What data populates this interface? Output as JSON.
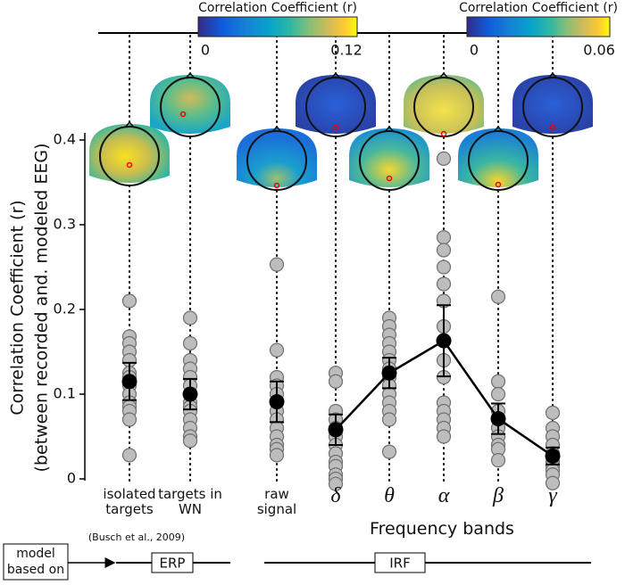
{
  "chart_data": {
    "type": "strip",
    "ylabel": "Correlation Coefficient (r)",
    "ylabel2": "(between recorded and. modeled EEG)",
    "xlabel": "Frequency bands",
    "note": "(Busch et al., 2009)",
    "ylim": [
      0,
      0.4
    ],
    "yticks": [
      0,
      0.1,
      0.2,
      0.3,
      0.4
    ],
    "groups": [
      {
        "label": "isolated targets",
        "points": [
          0.21,
          0.168,
          0.16,
          0.15,
          0.14,
          0.125,
          0.12,
          0.11,
          0.1,
          0.09,
          0.085,
          0.08,
          0.07,
          0.028
        ],
        "mean": 0.115,
        "error": 0.022
      },
      {
        "label": "targets in WN",
        "points": [
          0.19,
          0.16,
          0.14,
          0.13,
          0.12,
          0.11,
          0.1,
          0.09,
          0.085,
          0.08,
          0.07,
          0.06,
          0.05,
          0.045
        ],
        "mean": 0.1,
        "error": 0.018
      },
      {
        "label": "raw signal",
        "points": [
          0.253,
          0.152,
          0.12,
          0.11,
          0.1,
          0.09,
          0.08,
          0.07,
          0.06,
          0.05,
          0.04,
          0.035,
          0.028
        ],
        "mean": 0.091,
        "error": 0.024
      },
      {
        "label": "δ",
        "points": [
          0.125,
          0.115,
          0.08,
          0.07,
          0.06,
          0.05,
          0.04,
          0.03,
          0.02,
          0.015,
          0.005,
          0,
          -0.006
        ],
        "mean": 0.058,
        "error": 0.018
      },
      {
        "label": "θ",
        "points": [
          0.19,
          0.18,
          0.17,
          0.16,
          0.15,
          0.14,
          0.13,
          0.12,
          0.11,
          0.1,
          0.09,
          0.08,
          0.07,
          0.032
        ],
        "mean": 0.125,
        "error": 0.018
      },
      {
        "label": "α",
        "points": [
          0.378,
          0.285,
          0.27,
          0.25,
          0.23,
          0.21,
          0.18,
          0.14,
          0.12,
          0.09,
          0.08,
          0.07,
          0.06,
          0.05
        ],
        "mean": 0.163,
        "error": 0.042
      },
      {
        "label": "β",
        "points": [
          0.215,
          0.115,
          0.1,
          0.08,
          0.07,
          0.06,
          0.05,
          0.04,
          0.035,
          0.022
        ],
        "mean": 0.071,
        "error": 0.018
      },
      {
        "label": "γ",
        "points": [
          0.078,
          0.06,
          0.05,
          0.04,
          0.03,
          0.02,
          0.015,
          0.01,
          0.005,
          -0.005
        ],
        "mean": 0.027,
        "error": 0.01
      }
    ],
    "colorbars": [
      {
        "title": "Correlation Coefficient (r)",
        "lim": [
          0,
          0.12
        ],
        "ticks": [
          0,
          0.12
        ]
      },
      {
        "title": "Correlation Coefficient (r)",
        "lim": [
          0,
          0.06
        ],
        "ticks": [
          0,
          0.06
        ]
      }
    ],
    "model_label": "model based on",
    "erp_label": "ERP",
    "irf_label": "IRF"
  }
}
